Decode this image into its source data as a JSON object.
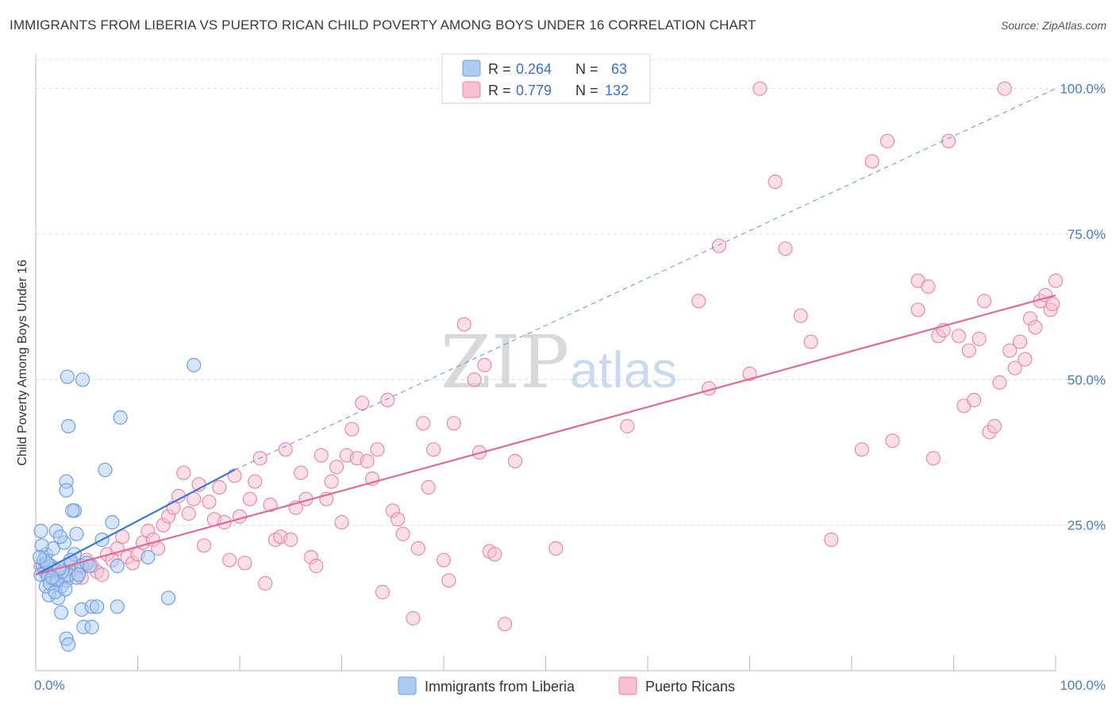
{
  "title": "IMMIGRANTS FROM LIBERIA VS PUERTO RICAN CHILD POVERTY AMONG BOYS UNDER 16 CORRELATION CHART",
  "source": "Source: ZipAtlas.com",
  "watermark": {
    "zip": "ZIP",
    "atlas": "atlas"
  },
  "colors": {
    "blue_fill": "#aecbf2",
    "blue_stroke": "#6f9fe0",
    "blue_line": "#3b78d8",
    "pink_fill": "#f6c0d1",
    "pink_stroke": "#e88aaa",
    "pink_line": "#e06a97",
    "grid": "#dcdcdc",
    "tick_text": "#4a78c8"
  },
  "legend": {
    "rows": [
      {
        "r_label": "R =",
        "r_value": "0.264",
        "n_label": "N =",
        "n_value": "63"
      },
      {
        "r_label": "R =",
        "r_value": "0.779",
        "n_label": "N =",
        "n_value": "132"
      }
    ]
  },
  "bottom_legend": [
    "Immigrants from Liberia",
    "Puerto Ricans"
  ],
  "chart_data": {
    "type": "scatter",
    "title": "IMMIGRANTS FROM LIBERIA VS PUERTO RICAN CHILD POVERTY AMONG BOYS UNDER 16 CORRELATION CHART",
    "xlabel": "",
    "ylabel": "Child Poverty Among Boys Under 16",
    "xlim": [
      0,
      100
    ],
    "ylim": [
      0,
      105
    ],
    "x_tick_labels": [
      {
        "value": 0,
        "label": "0.0%"
      },
      {
        "value": 100,
        "label": "100.0%"
      }
    ],
    "y_tick_labels": [
      {
        "value": 25,
        "label": "25.0%"
      },
      {
        "value": 50,
        "label": "50.0%"
      },
      {
        "value": 75,
        "label": "75.0%"
      },
      {
        "value": 100,
        "label": "100.0%"
      }
    ],
    "series": [
      {
        "name": "Immigrants from Liberia",
        "R": 0.264,
        "N": 63,
        "trend": {
          "x": [
            0,
            19.5
          ],
          "y": [
            16.5,
            34.5
          ]
        },
        "trend_extension": {
          "x": [
            19.5,
            100
          ],
          "y": [
            34.5,
            100
          ]
        },
        "points": [
          [
            0.5,
            24.0
          ],
          [
            1.0,
            20.0
          ],
          [
            0.7,
            18.0
          ],
          [
            0.9,
            17.0
          ],
          [
            0.5,
            16.5
          ],
          [
            1.5,
            18.0
          ],
          [
            1.2,
            16.0
          ],
          [
            1.8,
            17.5
          ],
          [
            2.0,
            15.0
          ],
          [
            2.5,
            14.5
          ],
          [
            3.0,
            15.5
          ],
          [
            1.3,
            13.0
          ],
          [
            2.2,
            12.5
          ],
          [
            1.0,
            14.5
          ],
          [
            1.7,
            21.0
          ],
          [
            2.8,
            22.0
          ],
          [
            2.0,
            24.0
          ],
          [
            3.5,
            18.5
          ],
          [
            3.2,
            16.5
          ],
          [
            2.4,
            23.0
          ],
          [
            3.8,
            20.0
          ],
          [
            4.0,
            16.0
          ],
          [
            4.5,
            18.0
          ],
          [
            5.0,
            18.5
          ],
          [
            3.0,
            32.5
          ],
          [
            3.0,
            31.0
          ],
          [
            4.6,
            50.0
          ],
          [
            3.1,
            50.5
          ],
          [
            3.2,
            42.0
          ],
          [
            3.8,
            27.5
          ],
          [
            4.0,
            23.5
          ],
          [
            4.5,
            10.5
          ],
          [
            4.7,
            7.5
          ],
          [
            5.5,
            7.5
          ],
          [
            5.5,
            11.0
          ],
          [
            3.0,
            5.5
          ],
          [
            3.2,
            4.5
          ],
          [
            2.5,
            10.0
          ],
          [
            6.0,
            11.0
          ],
          [
            8.0,
            11.0
          ],
          [
            6.5,
            22.5
          ],
          [
            6.8,
            34.5
          ],
          [
            7.5,
            25.5
          ],
          [
            8.0,
            18.0
          ],
          [
            8.3,
            43.5
          ],
          [
            11.0,
            19.5
          ],
          [
            13.0,
            12.5
          ],
          [
            15.5,
            52.5
          ],
          [
            0.8,
            19.0
          ],
          [
            1.4,
            15.0
          ],
          [
            2.1,
            15.5
          ],
          [
            2.6,
            17.0
          ],
          [
            1.9,
            13.5
          ],
          [
            0.6,
            21.5
          ],
          [
            3.4,
            19.0
          ],
          [
            2.9,
            14.0
          ],
          [
            4.2,
            16.5
          ],
          [
            1.1,
            18.5
          ],
          [
            3.6,
            27.5
          ],
          [
            2.3,
            17.5
          ],
          [
            5.3,
            18.0
          ],
          [
            1.6,
            16.0
          ],
          [
            0.4,
            19.5
          ]
        ]
      },
      {
        "name": "Puerto Ricans",
        "R": 0.779,
        "N": 132,
        "trend": {
          "x": [
            0,
            100
          ],
          "y": [
            16.5,
            64.5
          ]
        },
        "points": [
          [
            0.5,
            18.0
          ],
          [
            1.0,
            17.0
          ],
          [
            1.5,
            16.5
          ],
          [
            2.0,
            15.0
          ],
          [
            2.5,
            17.0
          ],
          [
            3.0,
            16.0
          ],
          [
            3.5,
            18.5
          ],
          [
            4.0,
            17.5
          ],
          [
            4.5,
            16.0
          ],
          [
            5.0,
            19.0
          ],
          [
            5.5,
            18.0
          ],
          [
            6.0,
            17.0
          ],
          [
            6.5,
            16.5
          ],
          [
            7.0,
            20.0
          ],
          [
            7.5,
            19.0
          ],
          [
            8.0,
            21.0
          ],
          [
            8.5,
            23.0
          ],
          [
            9.0,
            19.5
          ],
          [
            9.5,
            18.5
          ],
          [
            10.0,
            20.0
          ],
          [
            10.5,
            22.0
          ],
          [
            11.0,
            24.0
          ],
          [
            11.5,
            22.5
          ],
          [
            12.0,
            21.0
          ],
          [
            12.5,
            25.0
          ],
          [
            13.0,
            26.5
          ],
          [
            13.5,
            28.0
          ],
          [
            14.0,
            30.0
          ],
          [
            14.5,
            34.0
          ],
          [
            15.0,
            27.0
          ],
          [
            15.5,
            29.5
          ],
          [
            16.0,
            32.0
          ],
          [
            16.5,
            21.5
          ],
          [
            17.0,
            29.0
          ],
          [
            17.5,
            26.0
          ],
          [
            18.0,
            31.5
          ],
          [
            18.5,
            25.5
          ],
          [
            19.0,
            19.0
          ],
          [
            19.5,
            33.5
          ],
          [
            20.0,
            26.5
          ],
          [
            20.5,
            18.5
          ],
          [
            21.0,
            29.5
          ],
          [
            21.5,
            32.5
          ],
          [
            22.0,
            36.5
          ],
          [
            22.5,
            15.0
          ],
          [
            23.0,
            28.5
          ],
          [
            23.5,
            22.5
          ],
          [
            24.0,
            23.0
          ],
          [
            24.5,
            38.0
          ],
          [
            25.0,
            22.5
          ],
          [
            25.5,
            28.0
          ],
          [
            26.0,
            34.0
          ],
          [
            26.5,
            29.5
          ],
          [
            27.0,
            19.5
          ],
          [
            27.5,
            18.0
          ],
          [
            28.0,
            37.0
          ],
          [
            28.5,
            29.5
          ],
          [
            29.0,
            32.5
          ],
          [
            29.5,
            35.0
          ],
          [
            30.0,
            25.5
          ],
          [
            30.5,
            37.0
          ],
          [
            31.0,
            41.5
          ],
          [
            31.5,
            36.5
          ],
          [
            32.0,
            46.0
          ],
          [
            32.5,
            36.0
          ],
          [
            33.0,
            33.0
          ],
          [
            33.5,
            38.0
          ],
          [
            34.0,
            13.5
          ],
          [
            34.5,
            46.5
          ],
          [
            35.0,
            27.5
          ],
          [
            35.5,
            26.0
          ],
          [
            36.0,
            23.5
          ],
          [
            37.0,
            9.0
          ],
          [
            37.5,
            21.0
          ],
          [
            38.0,
            42.5
          ],
          [
            38.5,
            31.5
          ],
          [
            39.0,
            38.0
          ],
          [
            40.0,
            19.0
          ],
          [
            40.5,
            15.5
          ],
          [
            41.0,
            42.5
          ],
          [
            42.0,
            59.5
          ],
          [
            43.0,
            50.0
          ],
          [
            43.5,
            37.5
          ],
          [
            44.0,
            52.5
          ],
          [
            44.5,
            20.5
          ],
          [
            45.0,
            20.0
          ],
          [
            46.0,
            8.0
          ],
          [
            47.0,
            36.0
          ],
          [
            51.0,
            21.0
          ],
          [
            58.0,
            42.0
          ],
          [
            65.0,
            63.5
          ],
          [
            66.0,
            48.5
          ],
          [
            67.0,
            73.0
          ],
          [
            70.0,
            51.0
          ],
          [
            71.0,
            100.0
          ],
          [
            72.5,
            84.0
          ],
          [
            73.5,
            72.5
          ],
          [
            75.0,
            61.0
          ],
          [
            76.0,
            56.5
          ],
          [
            78.0,
            22.5
          ],
          [
            81.0,
            38.0
          ],
          [
            82.0,
            87.5
          ],
          [
            83.5,
            91.0
          ],
          [
            84.0,
            39.5
          ],
          [
            86.5,
            62.0
          ],
          [
            86.5,
            67.0
          ],
          [
            87.5,
            66.0
          ],
          [
            88.0,
            36.5
          ],
          [
            88.5,
            57.5
          ],
          [
            89.0,
            58.5
          ],
          [
            89.5,
            91.0
          ],
          [
            90.5,
            57.5
          ],
          [
            91.0,
            45.5
          ],
          [
            91.5,
            55.0
          ],
          [
            92.0,
            46.5
          ],
          [
            92.5,
            57.0
          ],
          [
            93.0,
            63.5
          ],
          [
            93.5,
            41.0
          ],
          [
            94.0,
            42.0
          ],
          [
            94.5,
            49.5
          ],
          [
            95.0,
            100.0
          ],
          [
            95.5,
            55.0
          ],
          [
            96.0,
            52.0
          ],
          [
            96.5,
            56.5
          ],
          [
            97.0,
            53.5
          ],
          [
            97.5,
            60.5
          ],
          [
            98.0,
            59.0
          ],
          [
            98.5,
            63.5
          ],
          [
            99.0,
            64.5
          ],
          [
            99.5,
            62.0
          ],
          [
            99.7,
            63.0
          ],
          [
            100.0,
            67.0
          ]
        ]
      }
    ]
  }
}
